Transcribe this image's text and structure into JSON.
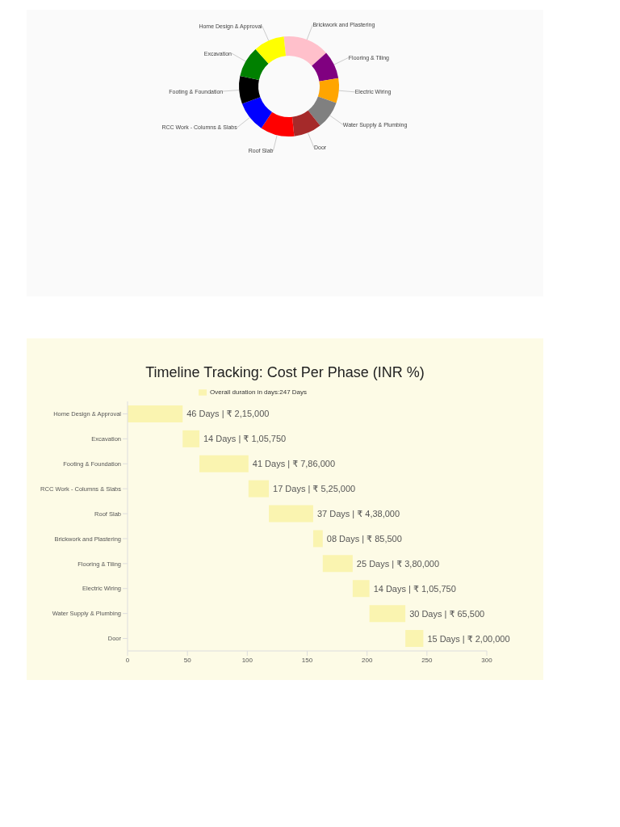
{
  "chart_data": [
    {
      "type": "donut",
      "categories": [
        "Brickwork and Plastering",
        "Flooring & Tiling",
        "Electric Wiring",
        "Water Supply & Plumbing",
        "Door",
        "Roof Slab",
        "RCC Work - Columns & Slabs",
        "Footing & Foundation",
        "Excavation",
        "Home Design & Approval"
      ],
      "values": [
        15,
        9,
        8,
        9,
        9,
        11,
        10,
        9,
        10,
        10
      ],
      "colors": [
        "#ffc0cb",
        "#800080",
        "#ffa500",
        "#808080",
        "#a52a2a",
        "#ff0000",
        "#0000ff",
        "#000000",
        "#008000",
        "#ffff00"
      ]
    },
    {
      "type": "bar",
      "orientation": "horizontal",
      "title": "Timeline Tracking: Cost Per Phase (INR %)",
      "categories": [
        "Home Design & Approval",
        "Excavation",
        "Footing & Foundation",
        "RCC Work - Columns & Slabs",
        "Roof Slab",
        "Brickwork and Plastering",
        "Flooring & Tiling",
        "Electric Wiring",
        "Water Supply & Plumbing",
        "Door"
      ],
      "series": [
        {
          "name": "Overall duration in days:247 Days",
          "color": "#faf4b0",
          "base": [
            0,
            46,
            60,
            101,
            118,
            155,
            163,
            188,
            202,
            232
          ],
          "values": [
            46,
            14,
            41,
            17,
            37,
            8,
            25,
            14,
            30,
            15
          ],
          "value_labels": [
            "46 Days | ₹ 2,15,000",
            "14 Days | ₹ 1,05,750",
            "41 Days | ₹ 7,86,000",
            "17 Days | ₹ 5,25,000",
            "37 Days | ₹ 4,38,000",
            "08 Days | ₹ 85,500",
            "25 Days | ₹ 3,80,000",
            "14 Days | ₹ 1,05,750",
            "30 Days | ₹ 65,500",
            "15 Days | ₹ 2,00,000"
          ]
        }
      ],
      "xlim": [
        0,
        300
      ],
      "xticks": [
        0,
        50,
        100,
        150,
        200,
        250,
        300
      ],
      "legend": "top"
    }
  ]
}
